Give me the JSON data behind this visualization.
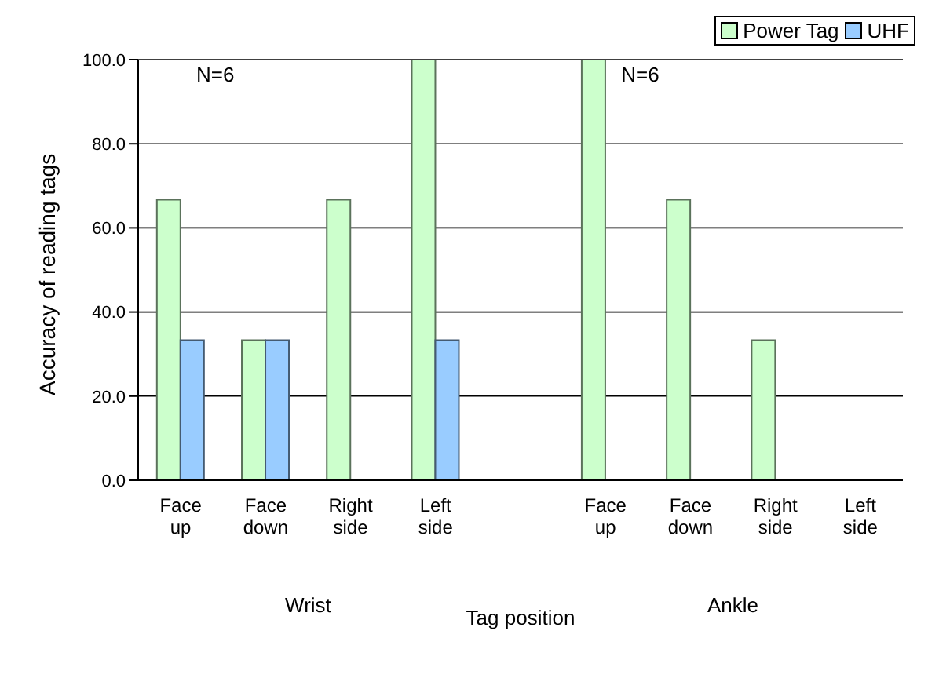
{
  "chart_data": {
    "type": "bar",
    "xlabel": "Tag position",
    "ylabel": "Accuracy of reading tags",
    "categories": [
      "Face up",
      "Face down",
      "Right side",
      "Left side",
      null,
      "Face up",
      "Face down",
      "Right side",
      "Left side"
    ],
    "series": [
      {
        "name": "Power Tag",
        "color": "#ccffcc",
        "values": [
          66.7,
          33.3,
          66.7,
          100,
          null,
          100,
          66.7,
          33.3,
          0
        ]
      },
      {
        "name": "UHF",
        "color": "#99ccff",
        "values": [
          33.3,
          33.3,
          0,
          33.3,
          null,
          0,
          0,
          0,
          0
        ]
      }
    ],
    "ylim": [
      0,
      100
    ],
    "yticks": [
      {
        "value": 0,
        "label": "0.0"
      },
      {
        "value": 20,
        "label": "20.0"
      },
      {
        "value": 40,
        "label": "40.0"
      },
      {
        "value": 60,
        "label": "60.0"
      },
      {
        "value": 80,
        "label": "80.0"
      },
      {
        "value": 100,
        "label": "100.0"
      }
    ],
    "annotations": [
      "N=6",
      "N=6",
      "Wrist",
      "Ankle"
    ],
    "grid": "y",
    "legend": "top right"
  }
}
